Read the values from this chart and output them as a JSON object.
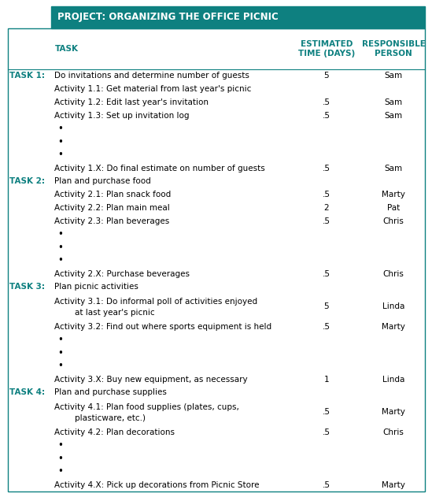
{
  "title": "PROJECT: ORGANIZING THE OFFICE PICNIC",
  "title_bg": "#0e8080",
  "title_color": "#ffffff",
  "header_color": "#0e8080",
  "col_headers": [
    "TASK",
    "ESTIMATED\nTIME (DAYS)",
    "RESPONSIBLE\nPERSON"
  ],
  "rows": [
    {
      "task_label": "TASK 1:",
      "col1": "Do invitations and determine number of guests",
      "col2": "5",
      "col3": "Sam"
    },
    {
      "task_label": "",
      "col1": "Activity 1.1: Get material from last year's picnic",
      "col2": "",
      "col3": ""
    },
    {
      "task_label": "",
      "col1": "Activity 1.2: Edit last year's invitation",
      "col2": ".5",
      "col3": "Sam"
    },
    {
      "task_label": "",
      "col1": "Activity 1.3: Set up invitation log",
      "col2": ".5",
      "col3": "Sam"
    },
    {
      "task_label": "",
      "col1": "•",
      "col2": "",
      "col3": ""
    },
    {
      "task_label": "",
      "col1": "•",
      "col2": "",
      "col3": ""
    },
    {
      "task_label": "",
      "col1": "•",
      "col2": "",
      "col3": ""
    },
    {
      "task_label": "",
      "col1": "Activity 1.X: Do final estimate on number of guests",
      "col2": ".5",
      "col3": "Sam"
    },
    {
      "task_label": "TASK 2:",
      "col1": "Plan and purchase food",
      "col2": "",
      "col3": ""
    },
    {
      "task_label": "",
      "col1": "Activity 2.1: Plan snack food",
      "col2": ".5",
      "col3": "Marty"
    },
    {
      "task_label": "",
      "col1": "Activity 2.2: Plan main meal",
      "col2": "2",
      "col3": "Pat"
    },
    {
      "task_label": "",
      "col1": "Activity 2.3: Plan beverages",
      "col2": ".5",
      "col3": "Chris"
    },
    {
      "task_label": "",
      "col1": "•",
      "col2": "",
      "col3": ""
    },
    {
      "task_label": "",
      "col1": "•",
      "col2": "",
      "col3": ""
    },
    {
      "task_label": "",
      "col1": "•",
      "col2": "",
      "col3": ""
    },
    {
      "task_label": "",
      "col1": "Activity 2.X: Purchase beverages",
      "col2": ".5",
      "col3": "Chris"
    },
    {
      "task_label": "TASK 3:",
      "col1": "Plan picnic activities",
      "col2": "",
      "col3": ""
    },
    {
      "task_label": "",
      "col1": "Activity 3.1: Do informal poll of activities enjoyed\n             at last year's picnic",
      "col2": "5",
      "col3": "Linda"
    },
    {
      "task_label": "",
      "col1": "Activity 3.2: Find out where sports equipment is held",
      "col2": ".5",
      "col3": "Marty"
    },
    {
      "task_label": "",
      "col1": "•",
      "col2": "",
      "col3": ""
    },
    {
      "task_label": "",
      "col1": "•",
      "col2": "",
      "col3": ""
    },
    {
      "task_label": "",
      "col1": "•",
      "col2": "",
      "col3": ""
    },
    {
      "task_label": "",
      "col1": "Activity 3.X: Buy new equipment, as necessary",
      "col2": "1",
      "col3": "Linda"
    },
    {
      "task_label": "TASK 4:",
      "col1": "Plan and purchase supplies",
      "col2": "",
      "col3": ""
    },
    {
      "task_label": "",
      "col1": "Activity 4.1: Plan food supplies (plates, cups,\n             plasticware, etc.)",
      "col2": ".5",
      "col3": "Marty"
    },
    {
      "task_label": "",
      "col1": "Activity 4.2: Plan decorations",
      "col2": ".5",
      "col3": "Chris"
    },
    {
      "task_label": "",
      "col1": "•",
      "col2": "",
      "col3": ""
    },
    {
      "task_label": "",
      "col1": "•",
      "col2": "",
      "col3": ""
    },
    {
      "task_label": "",
      "col1": "•",
      "col2": "",
      "col3": ""
    },
    {
      "task_label": "",
      "col1": "Activity 4.X: Pick up decorations from Picnic Store",
      "col2": ".5",
      "col3": "Marty"
    }
  ],
  "bg_color": "#ffffff",
  "border_color": "#0e8080",
  "font_size": 7.5,
  "header_font_size": 7.5,
  "title_fontsize": 8.5
}
